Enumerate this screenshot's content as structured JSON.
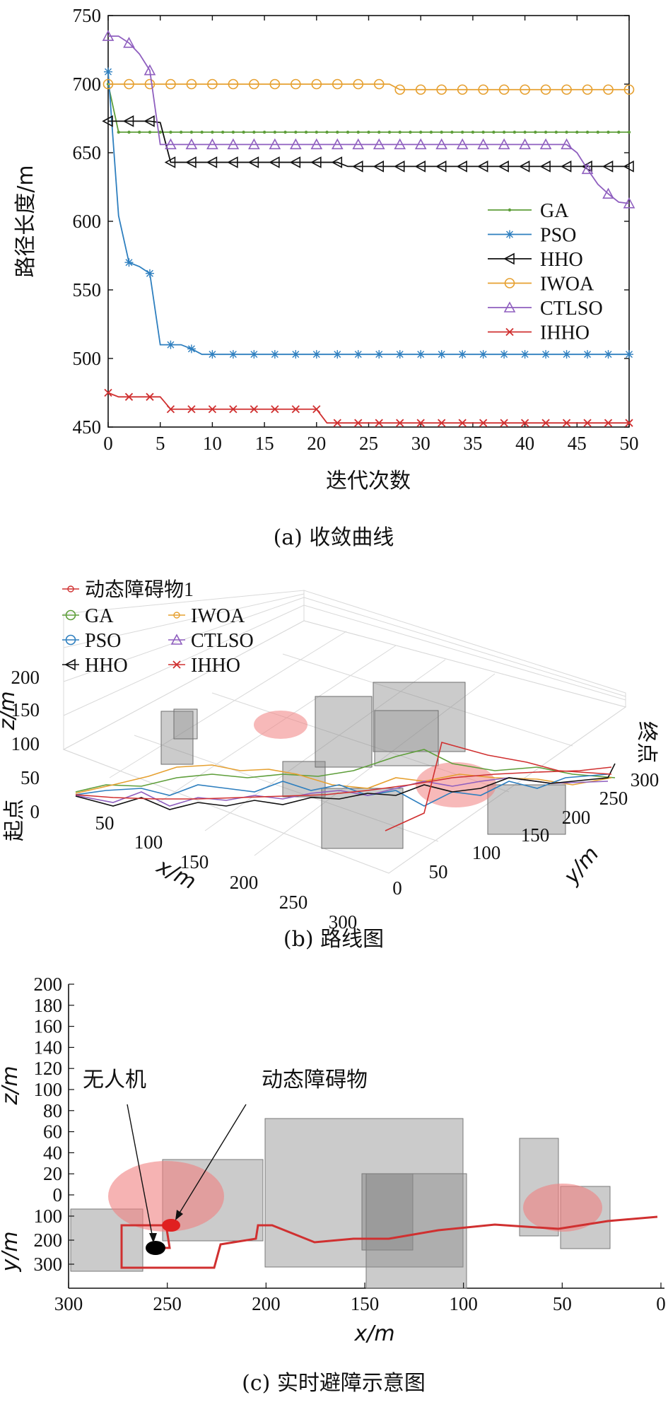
{
  "chart_data": [
    {
      "type": "line",
      "xlabel": "迭代次数",
      "ylabel": "路径长度/m",
      "caption": "(a) 收敛曲线",
      "xlim": [
        0,
        50
      ],
      "ylim": [
        450,
        750
      ],
      "xticks": [
        "0",
        "5",
        "10",
        "15",
        "20",
        "25",
        "30",
        "35",
        "40",
        "45",
        "50"
      ],
      "yticks": [
        "450",
        "500",
        "550",
        "600",
        "650",
        "700",
        "750"
      ],
      "legend_position": "right",
      "series": [
        {
          "name": "GA",
          "color": "#5e9e3a",
          "marker": "dot",
          "points": [
            [
              0,
              700
            ],
            [
              1,
              665
            ],
            [
              2,
              665
            ],
            [
              50,
              665
            ]
          ]
        },
        {
          "name": "PSO",
          "color": "#2e7fbf",
          "marker": "asterisk",
          "points": [
            [
              0,
              709
            ],
            [
              1,
              604
            ],
            [
              2,
              570
            ],
            [
              3,
              567
            ],
            [
              4,
              562
            ],
            [
              5,
              510
            ],
            [
              6,
              510
            ],
            [
              7,
              510
            ],
            [
              8,
              507
            ],
            [
              9,
              503
            ],
            [
              50,
              503
            ]
          ]
        },
        {
          "name": "HHO",
          "color": "#111111",
          "marker": "triangle-left",
          "points": [
            [
              0,
              673
            ],
            [
              3,
              673
            ],
            [
              4,
              673
            ],
            [
              5,
              672
            ],
            [
              6,
              643
            ],
            [
              22,
              643
            ],
            [
              23,
              640
            ],
            [
              50,
              640
            ]
          ]
        },
        {
          "name": "IWOA",
          "color": "#e6a030",
          "marker": "circle",
          "points": [
            [
              0,
              700
            ],
            [
              27,
              700
            ],
            [
              28,
              696
            ],
            [
              50,
              696
            ]
          ]
        },
        {
          "name": "CTLSO",
          "color": "#8f5fbf",
          "marker": "triangle-up",
          "points": [
            [
              0,
              735
            ],
            [
              1,
              735
            ],
            [
              2,
              730
            ],
            [
              3,
              722
            ],
            [
              4,
              710
            ],
            [
              5,
              656
            ],
            [
              44,
              656
            ],
            [
              45,
              650
            ],
            [
              46,
              638
            ],
            [
              47,
              627
            ],
            [
              48,
              620
            ],
            [
              49,
              614
            ],
            [
              50,
              613
            ]
          ]
        },
        {
          "name": "IHHO",
          "color": "#d03030",
          "marker": "x",
          "points": [
            [
              0,
              475
            ],
            [
              1,
              472
            ],
            [
              5,
              472
            ],
            [
              6,
              463
            ],
            [
              20,
              463
            ],
            [
              21,
              453
            ],
            [
              50,
              453
            ]
          ]
        }
      ]
    },
    {
      "type": "scatter",
      "subtype": "3d-path",
      "caption": "(b) 路线图",
      "xlabel": "x/m",
      "ylabel": "y/m",
      "zlabel": "z/m",
      "start_label": "起点",
      "end_label": "终点",
      "xticks": [
        "50",
        "100",
        "150",
        "200",
        "250",
        "300"
      ],
      "yticks": [
        "0",
        "50",
        "100",
        "150",
        "200",
        "250",
        "300"
      ],
      "zticks": [
        "0",
        "50",
        "100",
        "150",
        "200"
      ],
      "legend": [
        "动态障碍物1",
        "GA",
        "PSO",
        "HHO",
        "IWOA",
        "CTLSO",
        "IHHO"
      ],
      "legend_position": "top-left",
      "colors": {
        "动态障碍物1": "#d03030",
        "GA": "#5e9e3a",
        "PSO": "#2e7fbf",
        "HHO": "#111111",
        "IWOA": "#e6a030",
        "CTLSO": "#8f5fbf",
        "IHHO": "#d03030"
      }
    },
    {
      "type": "scatter",
      "subtype": "side-view",
      "caption": "(c) 实时避障示意图",
      "xlabel": "x/m",
      "ylabel_top": "z/m",
      "ylabel_bottom": "y/m",
      "xticks": [
        "300",
        "250",
        "200",
        "150",
        "100",
        "50",
        "0"
      ],
      "zticks": [
        "200",
        "180",
        "160",
        "140",
        "120",
        "100",
        "80",
        "60",
        "40",
        "20",
        "0"
      ],
      "yticks": [
        "100",
        "200",
        "300"
      ],
      "annotations": {
        "uav": "无人机",
        "obstacle": "动态障碍物"
      }
    }
  ]
}
